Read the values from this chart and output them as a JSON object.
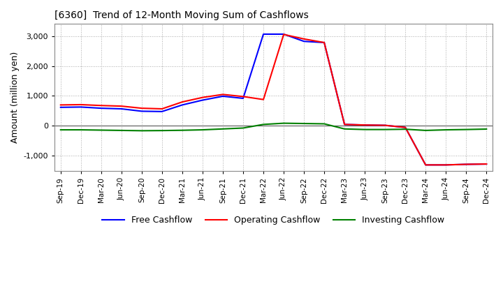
{
  "title": "[6360]  Trend of 12-Month Moving Sum of Cashflows",
  "ylabel": "Amount (million yen)",
  "ylim": [
    -1500,
    3400
  ],
  "yticks": [
    -1000,
    0,
    1000,
    2000,
    3000
  ],
  "x_labels": [
    "Sep-19",
    "Dec-19",
    "Mar-20",
    "Jun-20",
    "Sep-20",
    "Dec-20",
    "Mar-21",
    "Jun-21",
    "Sep-21",
    "Dec-21",
    "Mar-22",
    "Jun-22",
    "Sep-22",
    "Dec-22",
    "Mar-23",
    "Jun-23",
    "Sep-23",
    "Dec-23",
    "Mar-24",
    "Jun-24",
    "Sep-24",
    "Dec-24"
  ],
  "operating_cashflow": [
    700,
    710,
    680,
    660,
    590,
    570,
    800,
    950,
    1050,
    980,
    880,
    3050,
    2900,
    2780,
    50,
    30,
    20,
    -50,
    -1300,
    -1300,
    -1280,
    -1270
  ],
  "investing_cashflow": [
    -130,
    -130,
    -140,
    -150,
    -160,
    -155,
    -145,
    -130,
    -100,
    -70,
    50,
    90,
    80,
    70,
    -100,
    -120,
    -120,
    -110,
    -150,
    -130,
    -120,
    -105
  ],
  "free_cashflow": [
    620,
    630,
    590,
    570,
    490,
    480,
    700,
    860,
    990,
    920,
    3060,
    3060,
    2820,
    2780,
    50,
    30,
    20,
    -50,
    -1300,
    -1300,
    -1280,
    -1270
  ],
  "operating_color": "#ff0000",
  "investing_color": "#008000",
  "free_color": "#0000ff",
  "grid_color": "#aaaaaa",
  "background_color": "#ffffff"
}
